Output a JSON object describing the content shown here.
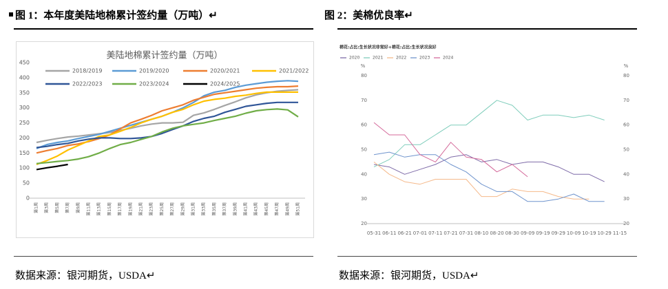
{
  "figures": [
    {
      "caption": "图 1：本年度美陆地棉累计签约量（万吨）↵",
      "source": "数据来源：银河期货，USDA↵"
    },
    {
      "caption": "图 2：美棉优良率↵",
      "source": "数据来源：银河期货，USDA↵"
    }
  ],
  "chart_data": [
    {
      "type": "line",
      "title": "美陆地棉累计签约量（万吨）",
      "legend": "top",
      "categories": [
        "第1周",
        "第3周",
        "第5周",
        "第7周",
        "第9周",
        "第11周",
        "第13周",
        "第15周",
        "第17周",
        "第19周",
        "第21周",
        "第23周",
        "第25周",
        "第27周",
        "第29周",
        "第31周",
        "第33周",
        "第35周",
        "第37周",
        "第39周",
        "第41周",
        "第43周",
        "第45周",
        "第47周",
        "第49周",
        "第51周"
      ],
      "ylim": [
        0,
        450
      ],
      "yticks": [
        0,
        50,
        100,
        150,
        200,
        250,
        300,
        350,
        400,
        450
      ],
      "grid": false,
      "series": [
        {
          "name": "2018/2019",
          "color": "#a5a5a5",
          "values": [
            185,
            192,
            198,
            203,
            206,
            210,
            214,
            218,
            225,
            232,
            240,
            246,
            250,
            250,
            252,
            275,
            283,
            295,
            308,
            320,
            333,
            343,
            350,
            355,
            358,
            360
          ]
        },
        {
          "name": "2019/2020",
          "color": "#5b9bd5",
          "values": [
            165,
            178,
            185,
            190,
            198,
            205,
            212,
            222,
            232,
            242,
            252,
            262,
            272,
            285,
            300,
            318,
            340,
            352,
            358,
            368,
            375,
            380,
            385,
            388,
            390,
            388
          ]
        },
        {
          "name": "2020/2021",
          "color": "#ed7d31",
          "values": [
            150,
            158,
            165,
            175,
            180,
            188,
            198,
            210,
            230,
            250,
            262,
            275,
            290,
            300,
            310,
            325,
            335,
            345,
            350,
            355,
            360,
            365,
            368,
            370,
            370,
            372
          ]
        },
        {
          "name": "2021/2022",
          "color": "#ffc000",
          "values": [
            112,
            125,
            140,
            160,
            175,
            190,
            205,
            210,
            222,
            235,
            250,
            262,
            272,
            285,
            295,
            310,
            322,
            328,
            332,
            338,
            342,
            348,
            352,
            352,
            352,
            352
          ]
        },
        {
          "name": "2022/2023",
          "color": "#2f5597",
          "values": [
            168,
            172,
            178,
            182,
            190,
            196,
            200,
            200,
            198,
            198,
            200,
            205,
            215,
            228,
            240,
            255,
            265,
            272,
            285,
            295,
            305,
            310,
            315,
            318,
            318,
            318
          ]
        },
        {
          "name": "2023/2024",
          "color": "#70ad47",
          "values": [
            115,
            118,
            122,
            125,
            130,
            138,
            150,
            165,
            178,
            185,
            195,
            205,
            220,
            232,
            240,
            245,
            250,
            258,
            265,
            272,
            282,
            290,
            294,
            296,
            293,
            270
          ]
        },
        {
          "name": "2024/2025",
          "color": "#000000",
          "values": [
            95,
            101,
            106,
            112,
            null,
            null,
            null,
            null,
            null,
            null,
            null,
            null,
            null,
            null,
            null,
            null,
            null,
            null,
            null,
            null,
            null,
            null,
            null,
            null,
            null,
            null
          ]
        }
      ]
    },
    {
      "type": "line",
      "subtitle": "棉花:占比:生长状况非常好+棉花:占比:生长状况良好",
      "legend": "top",
      "ylabel": "%",
      "y2label": "%",
      "categories": [
        "05-31",
        "06-11",
        "06-21",
        "07-01",
        "07-11",
        "07-21",
        "07-31",
        "08-10",
        "08-20",
        "08-30",
        "09-09",
        "09-19",
        "09-29",
        "10-09",
        "10-19",
        "10-29",
        "11-15"
      ],
      "ylim": [
        20,
        80
      ],
      "yticks": [
        20,
        30,
        40,
        50,
        60,
        70,
        80
      ],
      "y2lim": [
        20,
        80
      ],
      "y2ticks": [
        20,
        30,
        40,
        50,
        60,
        70,
        80
      ],
      "grid": false,
      "series": [
        {
          "name": "2020",
          "color": "#7e6ba8",
          "values": [
            44,
            43,
            40,
            42,
            44,
            47,
            48,
            45,
            46,
            44,
            45,
            45,
            43,
            40,
            40,
            37,
            null
          ]
        },
        {
          "name": "2021",
          "color": "#7fcdbb",
          "values": [
            43,
            46,
            52,
            52,
            56,
            60,
            60,
            65,
            70,
            68,
            62,
            64,
            64,
            63,
            64,
            62,
            null
          ]
        },
        {
          "name": "2022",
          "color": "#f5b98a",
          "values": [
            45,
            40,
            37,
            36,
            38,
            38,
            38,
            31,
            31,
            34,
            33,
            33,
            31,
            30,
            30,
            null,
            null
          ]
        },
        {
          "name": "2023",
          "color": "#6f94cd",
          "values": [
            48,
            49,
            47,
            48,
            48,
            44,
            41,
            36,
            33,
            33,
            29,
            29,
            30,
            32,
            29,
            29,
            null
          ]
        },
        {
          "name": "2024",
          "color": "#d4699a",
          "values": [
            61,
            56,
            56,
            48,
            45,
            53,
            47,
            46,
            41,
            44,
            39,
            null,
            null,
            null,
            null,
            null,
            null
          ]
        }
      ]
    }
  ]
}
